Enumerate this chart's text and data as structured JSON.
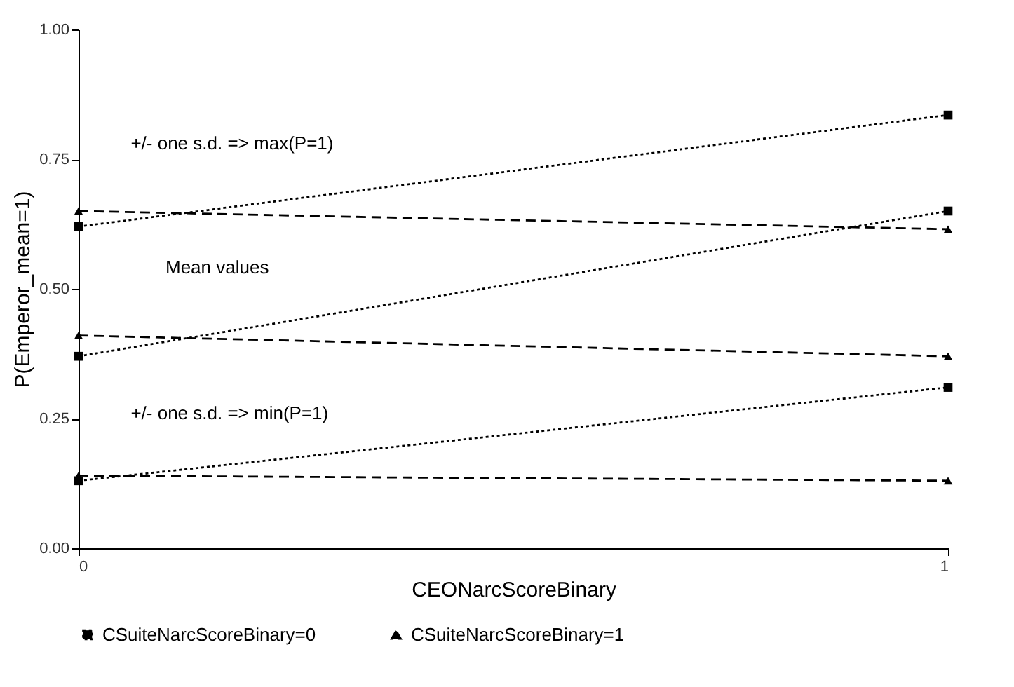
{
  "chart_data": {
    "type": "line",
    "xlabel": "CEONarcScoreBinary",
    "ylabel": "P(Emperor_mean=1)",
    "x": [
      0,
      1
    ],
    "xlim": [
      0,
      1
    ],
    "xticks": [
      0,
      1
    ],
    "ylim": [
      0,
      1
    ],
    "yticks": [
      {
        "value": 0,
        "label": "0.00"
      },
      {
        "value": 0.25,
        "label": "0.25"
      },
      {
        "value": 0.5,
        "label": "0.50"
      },
      {
        "value": 0.75,
        "label": "0.75"
      },
      {
        "value": 1,
        "label": "1.00"
      }
    ],
    "grid": false,
    "legend": "bottom",
    "series": [
      {
        "name": "CSuiteNarcScoreBinary=0",
        "color": "#000000",
        "line_style": "dotted",
        "marker": "square",
        "values": [
          0.62,
          0.835
        ]
      },
      {
        "color": "#000000",
        "line_style": "dotted",
        "marker": "square",
        "values": [
          0.37,
          0.65
        ]
      },
      {
        "color": "#000000",
        "line_style": "dotted",
        "marker": "square",
        "values": [
          0.13,
          0.31
        ]
      },
      {
        "name": "CSuiteNarcScoreBinary=1",
        "color": "#000000",
        "line_style": "dashed",
        "marker": "triangle",
        "values": [
          0.65,
          0.615
        ]
      },
      {
        "color": "#000000",
        "line_style": "dashed",
        "marker": "triangle",
        "values": [
          0.41,
          0.37
        ]
      },
      {
        "color": "#000000",
        "line_style": "dashed",
        "marker": "triangle",
        "values": [
          0.14,
          0.13
        ]
      }
    ],
    "annotations": [
      "+/- one s.d. => max(P=1)",
      "Mean values",
      "+/- one s.d. => min(P=1)"
    ]
  }
}
